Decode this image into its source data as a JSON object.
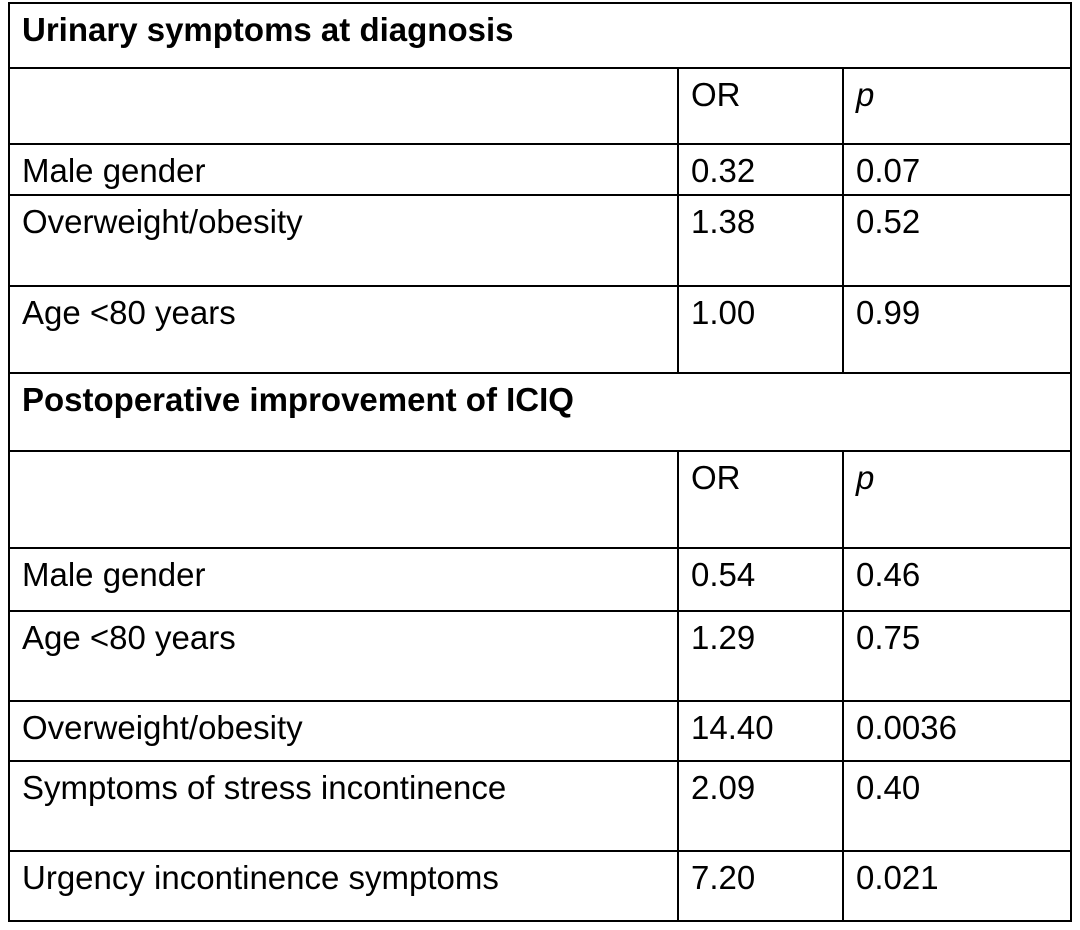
{
  "sections": [
    {
      "title": "Urinary symptoms at diagnosis",
      "header": [
        "OR",
        "p"
      ],
      "rows": [
        [
          "Male gender",
          "0.32",
          "0.07"
        ],
        [
          "Overweight/obesity",
          "1.38",
          "0.52"
        ],
        [
          "Age <80 years",
          "1.00",
          "0.99"
        ]
      ]
    },
    {
      "title": "Postoperative improvement of ICIQ",
      "header": [
        "OR",
        "p"
      ],
      "rows": [
        [
          "Male gender",
          "0.54",
          "0.46"
        ],
        [
          "Age <80 years",
          "1.29",
          "0.75"
        ],
        [
          "Overweight/obesity",
          "14.40",
          "0.0036"
        ],
        [
          "Symptoms of stress incontinence",
          "2.09",
          "0.40"
        ],
        [
          "Urgency incontinence symptoms",
          "7.20",
          "0.021"
        ]
      ]
    }
  ]
}
